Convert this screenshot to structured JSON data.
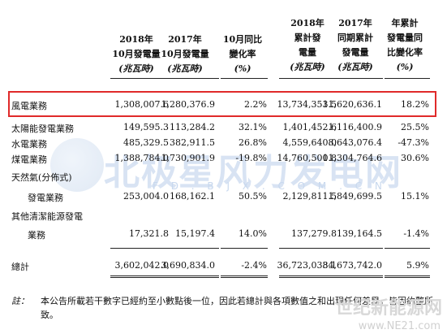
{
  "watermark": {
    "brand": "北极星风力发电网",
    "url": "F D . B J X . C O M . C N",
    "brand2": "世纪新能源网",
    "url2": "www.NE21.com"
  },
  "table": {
    "headers": [
      {
        "lines": [
          "2018年",
          "10月發電量",
          "(兆瓦時)"
        ]
      },
      {
        "lines": [
          "2017年",
          "10月發電量",
          "(兆瓦時)"
        ]
      },
      {
        "lines": [
          "10月同比",
          "變化率",
          "(%)"
        ]
      },
      {
        "lines": [
          "2018年",
          "累計發",
          "電量",
          "(兆瓦時)"
        ]
      },
      {
        "lines": [
          "2017年",
          "同期累計",
          "發電量",
          "(兆瓦時)"
        ]
      },
      {
        "lines": [
          "年累計",
          "發電量同",
          "比變化率",
          "(%)"
        ]
      }
    ],
    "rows": [
      {
        "label": "風電業務",
        "values": [
          "1,308,007.6",
          "1,280,376.9",
          "2.2%",
          "13,734,353.5",
          "11,620,636.1",
          "18.2%"
        ]
      },
      {
        "label": "太陽能發電業務",
        "values": [
          "149,595.3",
          "113,284.2",
          "32.1%",
          "1,401,452.6",
          "1,116,400.9",
          "25.5%"
        ]
      },
      {
        "label": "水電業務",
        "values": [
          "485,329.5",
          "382,911.5",
          "26.8%",
          "4,559,640.0",
          "8,643,076.4",
          "-47.3%"
        ]
      },
      {
        "label": "煤電業務",
        "values": [
          "1,388,784.0",
          "1,730,901.9",
          "-19.8%",
          "14,760,500.8",
          "11,304,764.6",
          "30.6%"
        ]
      },
      {
        "label": "天然氣(分佈式)",
        "label2": "發電業務",
        "values": [
          "253,004.0",
          "168,162.1",
          "50.5%",
          "2,129,811.5",
          "1,849,699.5",
          "15.1%"
        ]
      },
      {
        "label": "其他清潔能源發電",
        "label2": "業務",
        "values": [
          "17,321.8",
          "15,197.4",
          "14.0%",
          "137,279.8",
          "139,164.5",
          "-1.4%"
        ]
      }
    ],
    "total": {
      "label": "總計",
      "values": [
        "3,602,042.0",
        "3,690,834.0",
        "-2.4%",
        "36,723,038.1",
        "34,673,742.0",
        "5.9%"
      ]
    }
  },
  "note": {
    "label": "註：",
    "text": "本公告所載若干數字已經約至小數點後一位，因此若總計與各項數值之和出現任何差異，皆因約整所致。"
  }
}
